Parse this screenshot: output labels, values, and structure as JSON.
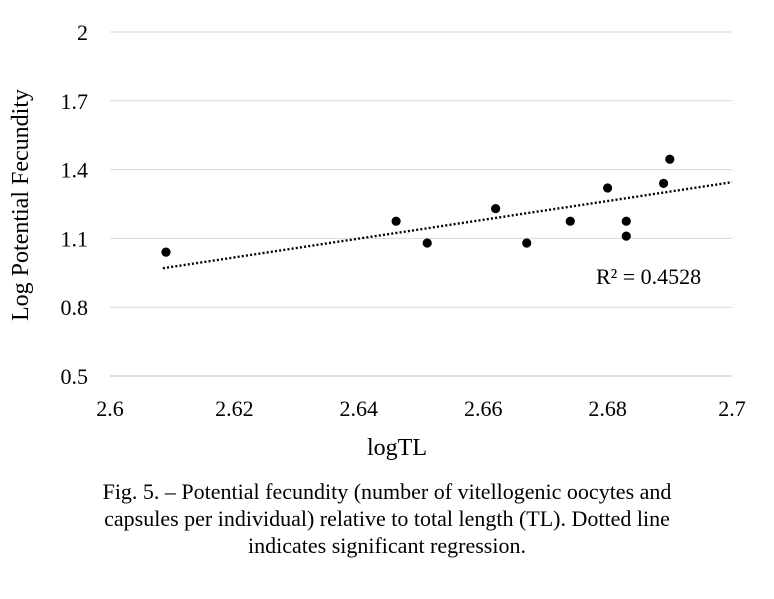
{
  "chart_data": {
    "type": "scatter",
    "title": "",
    "xlabel": "logTL",
    "ylabel": "Log Potential Fecundity",
    "xlim": [
      2.6,
      2.7
    ],
    "ylim": [
      0.5,
      2
    ],
    "x_ticks": [
      "2.6",
      "2.62",
      "2.64",
      "2.66",
      "2.68",
      "2.7"
    ],
    "y_ticks": [
      "0.5",
      "0.8",
      "1.1",
      "1.4",
      "1.7",
      "2"
    ],
    "grid": "horizontal",
    "series": [
      {
        "points": [
          {
            "x": 2.609,
            "y": 1.04
          },
          {
            "x": 2.646,
            "y": 1.175
          },
          {
            "x": 2.651,
            "y": 1.08
          },
          {
            "x": 2.662,
            "y": 1.23
          },
          {
            "x": 2.667,
            "y": 1.08
          },
          {
            "x": 2.674,
            "y": 1.175
          },
          {
            "x": 2.68,
            "y": 1.32
          },
          {
            "x": 2.683,
            "y": 1.175
          },
          {
            "x": 2.683,
            "y": 1.11
          },
          {
            "x": 2.689,
            "y": 1.34
          },
          {
            "x": 2.69,
            "y": 1.445
          }
        ]
      }
    ],
    "trendline": {
      "style": "dotted",
      "x": [
        2.6085,
        2.7
      ],
      "y": [
        0.97,
        1.345
      ]
    },
    "annotation": "R² = 0.4528"
  },
  "caption": {
    "line1": "Fig. 5. – Potential fecundity (number of vitellogenic oocytes and",
    "line2": "capsules per individual) relative to total length (TL). Dotted line",
    "line3": "indicates significant regression."
  }
}
